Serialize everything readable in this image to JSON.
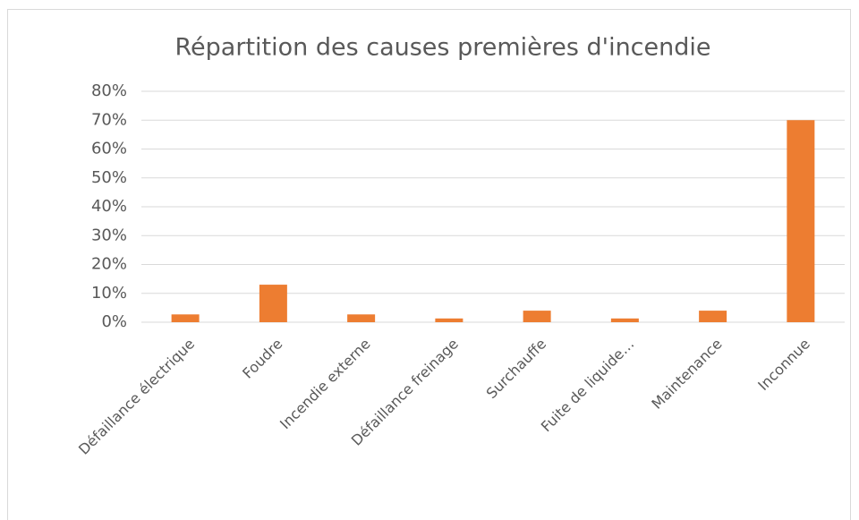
{
  "chart_data": {
    "type": "bar",
    "title": "Répartition des causes premières d'incendie",
    "categories": [
      "Défaillance électrique",
      "Foudre",
      "Incendie externe",
      "Défaillance freinage",
      "Surchauffe",
      "Fuite de liquide…",
      "Maintenance",
      "Inconnue"
    ],
    "values": [
      2.7,
      13,
      2.7,
      1.3,
      4,
      1.3,
      4,
      70
    ],
    "color": "#ed7d31",
    "ylim": [
      0,
      80
    ],
    "yticks": [
      {
        "value": 0,
        "label": "0%"
      },
      {
        "value": 10,
        "label": "10%"
      },
      {
        "value": 20,
        "label": "20%"
      },
      {
        "value": 30,
        "label": "30%"
      },
      {
        "value": 40,
        "label": "40%"
      },
      {
        "value": 50,
        "label": "50%"
      },
      {
        "value": 60,
        "label": "60%"
      },
      {
        "value": 70,
        "label": "70%"
      },
      {
        "value": 80,
        "label": "80%"
      }
    ],
    "grid": true
  }
}
